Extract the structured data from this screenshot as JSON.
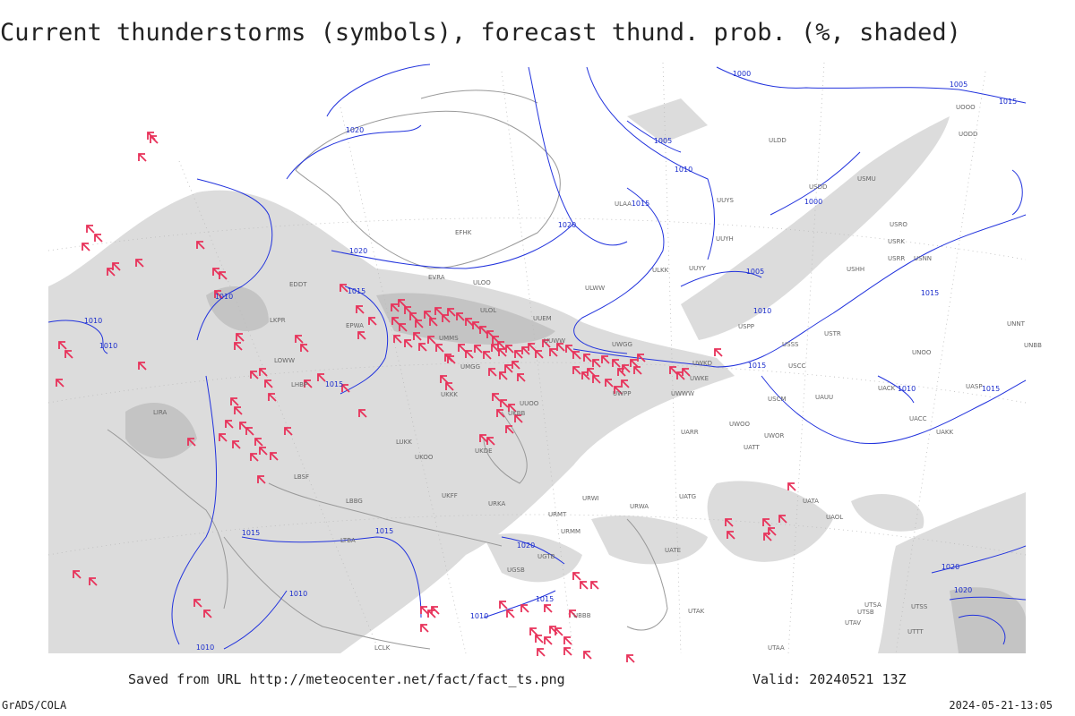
{
  "header": {
    "title": "Current thunderstorms (symbols), forecast thund. prob. (%, shaded)"
  },
  "footer": {
    "source": "Saved from URL http://meteocenter.net/fact/fact_ts.png",
    "valid": "Valid: 20240521 13Z",
    "credit": "GrADS/COLA",
    "timestamp": "2024-05-21-13:05"
  },
  "isobar_labels": [
    "1000",
    "1005",
    "1005",
    "1010",
    "1015",
    "1020",
    "1020",
    "1020",
    "1000",
    "1005",
    "1010",
    "1015",
    "1015",
    "1015",
    "1010",
    "1015",
    "1010",
    "1010",
    "1015",
    "1010",
    "1015",
    "1015",
    "1015",
    "1020",
    "1015",
    "1010",
    "1010",
    "1010",
    "1020",
    "1020"
  ],
  "stations": [
    "ULAA",
    "EFHK",
    "ULOO",
    "EVRA",
    "ULOL",
    "UUEM",
    "UUWW",
    "UUOO",
    "UKBB",
    "UKKK",
    "UMMS",
    "UMGG",
    "LUKK",
    "UKOO",
    "UKDE",
    "UKFF",
    "URKA",
    "URMT",
    "URMM",
    "URWA",
    "URWI",
    "UATG",
    "UATE",
    "UATA",
    "UAOL",
    "UACC",
    "UAKK",
    "UACK",
    "UASP",
    "USSS",
    "USCC",
    "USCM",
    "UAUU",
    "UWOO",
    "UWOR",
    "UATT",
    "UARR",
    "UWWW",
    "UWKE",
    "UWKD",
    "UWPP",
    "UWGG",
    "ULWW",
    "ULKK",
    "UUYY",
    "UUYH",
    "UUYS",
    "USDD",
    "ULDD",
    "USRR",
    "USRK",
    "USRO",
    "USTR",
    "USHH",
    "USPP",
    "UNNT",
    "UNBB",
    "UNOO",
    "USMU",
    "UODD",
    "UOOO",
    "USNN",
    "EDDT",
    "LKPR",
    "EPWA",
    "LOWW",
    "LHBP",
    "LIRA",
    "LBSF",
    "LBBG",
    "LTBA",
    "LCLK",
    "UGTB",
    "UGSB",
    "UBBB",
    "UTAA",
    "UTTT",
    "UTSS",
    "UTSB",
    "UTSA",
    "UTAV",
    "UTAK"
  ]
}
